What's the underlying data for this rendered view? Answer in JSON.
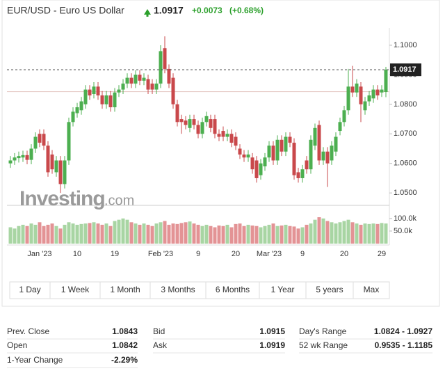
{
  "header": {
    "symbol": "EUR/USD - Euro US Dollar",
    "price": "1.0917",
    "change": "+0.0073",
    "change_pct": "(+0.68%)"
  },
  "watermark": {
    "brand": "Investing",
    "suffix": ".com"
  },
  "ranges": [
    "1 Day",
    "1 Week",
    "1 Month",
    "3 Months",
    "6 Months",
    "1 Year",
    "5 years",
    "Max"
  ],
  "stats": {
    "rows": [
      [
        [
          "Prev. Close",
          "1.0843"
        ],
        [
          "Bid",
          "1.0915"
        ],
        [
          "Day's Range",
          "1.0824 - 1.0927"
        ]
      ],
      [
        [
          "Open",
          "1.0842"
        ],
        [
          "Ask",
          "1.0919"
        ],
        [
          "52 wk Range",
          "0.9535 - 1.1185"
        ]
      ],
      [
        [
          "1-Year Change",
          "-2.29%"
        ]
      ]
    ]
  },
  "chart_data": {
    "type": "candlestick",
    "categories": [
      null,
      null,
      null,
      null,
      null,
      null,
      null,
      "Jan '23",
      null,
      null,
      null,
      null,
      null,
      null,
      null,
      null,
      "10",
      null,
      null,
      null,
      null,
      null,
      null,
      null,
      null,
      "19",
      null,
      null,
      null,
      null,
      null,
      null,
      null,
      null,
      null,
      null,
      "Feb '23",
      null,
      null,
      null,
      null,
      null,
      null,
      null,
      null,
      "9",
      null,
      null,
      null,
      null,
      null,
      null,
      null,
      null,
      "20",
      null,
      null,
      null,
      null,
      null,
      null,
      null,
      "Mar '23",
      null,
      null,
      null,
      null,
      null,
      null,
      null,
      "9",
      null,
      null,
      null,
      null,
      null,
      null,
      null,
      null,
      null,
      "20",
      null,
      null,
      null,
      null,
      null,
      null,
      null,
      null,
      "29",
      null
    ],
    "open": [
      1.06,
      1.061,
      1.0618,
      1.062,
      1.0628,
      1.0612,
      1.065,
      1.07,
      1.07,
      1.066,
      1.063,
      1.057,
      1.061,
      1.053,
      1.061,
      1.074,
      1.077,
      1.078,
      1.08,
      1.085,
      1.0835,
      1.086,
      1.083,
      1.08,
      1.083,
      1.079,
      1.084,
      1.085,
      1.087,
      1.089,
      1.087,
      1.09,
      1.088,
      1.0885,
      1.087,
      1.085,
      1.087,
      1.099,
      1.092,
      1.089,
      1.08,
      1.075,
      1.0745,
      1.072,
      1.075,
      1.073,
      1.07,
      1.074,
      1.075,
      1.075,
      1.07,
      1.071,
      1.069,
      1.07,
      1.069,
      1.065,
      1.063,
      1.062,
      1.062,
      1.061,
      1.056,
      1.059,
      1.062,
      1.066,
      1.061,
      1.068,
      1.064,
      1.069,
      1.067,
      1.057,
      1.055,
      1.061,
      1.058,
      1.066,
      1.073,
      1.061,
      1.064,
      1.061,
      1.064,
      1.071,
      1.074,
      1.078,
      1.086,
      1.084,
      1.086,
      1.078,
      1.081,
      1.082,
      1.085,
      1.084,
      1.0842
    ],
    "high": [
      1.0625,
      1.0635,
      1.064,
      1.0643,
      1.0643,
      1.0665,
      1.0705,
      1.0715,
      1.0715,
      1.0675,
      1.0645,
      1.0625,
      1.0625,
      1.0625,
      1.0755,
      1.079,
      1.0805,
      1.0825,
      1.0865,
      1.0865,
      1.0875,
      1.0875,
      1.0845,
      1.0845,
      1.0845,
      1.0855,
      1.0865,
      1.0885,
      1.0905,
      1.0905,
      1.0915,
      1.0915,
      1.0905,
      1.09,
      1.0885,
      1.0885,
      1.1,
      1.103,
      1.0935,
      1.0905,
      1.0815,
      1.0765,
      1.076,
      1.0765,
      1.0765,
      1.0745,
      1.0755,
      1.0775,
      1.0765,
      1.0765,
      1.0715,
      1.0725,
      1.0715,
      1.0715,
      1.0705,
      1.0665,
      1.0645,
      1.0645,
      1.0635,
      1.0625,
      1.0615,
      1.0635,
      1.0675,
      1.0675,
      1.0695,
      1.0695,
      1.0705,
      1.0705,
      1.0685,
      1.0585,
      1.0595,
      1.0625,
      1.0695,
      1.0735,
      1.0745,
      1.0655,
      1.0655,
      1.0675,
      1.0705,
      1.0755,
      1.0795,
      1.092,
      1.093,
      1.0885,
      1.0875,
      1.0825,
      1.0845,
      1.0865,
      1.0865,
      1.0865,
      1.0927
    ],
    "low": [
      1.0585,
      1.0595,
      1.0603,
      1.0605,
      1.0597,
      1.0597,
      1.0635,
      1.0655,
      1.0645,
      1.0555,
      1.0565,
      1.0555,
      1.05,
      1.0515,
      1.0595,
      1.0725,
      1.0755,
      1.0765,
      1.0785,
      1.0815,
      1.082,
      1.0815,
      1.0785,
      1.0785,
      1.0775,
      1.0775,
      1.0825,
      1.0835,
      1.0855,
      1.0855,
      1.0855,
      1.0865,
      1.0865,
      1.0835,
      1.0835,
      1.0835,
      1.0855,
      1.0905,
      1.0855,
      1.0785,
      1.0725,
      1.07,
      1.0715,
      1.0705,
      1.0715,
      1.0685,
      1.0685,
      1.0725,
      1.0705,
      1.0685,
      1.0675,
      1.0675,
      1.0675,
      1.0655,
      1.0645,
      1.0615,
      1.0605,
      1.0605,
      1.0565,
      1.0535,
      1.0545,
      1.0575,
      1.0605,
      1.0595,
      1.0595,
      1.0625,
      1.0625,
      1.0655,
      1.0545,
      1.0535,
      1.0535,
      1.0565,
      1.0565,
      1.0645,
      1.0595,
      1.0595,
      1.052,
      1.0595,
      1.0625,
      1.0695,
      1.0725,
      1.0765,
      1.0825,
      1.0825,
      1.074,
      1.0765,
      1.0795,
      1.0805,
      1.0815,
      1.0825,
      1.0824
    ],
    "close": [
      1.061,
      1.062,
      1.0625,
      1.0628,
      1.0612,
      1.065,
      1.069,
      1.067,
      1.066,
      1.057,
      1.058,
      1.061,
      1.053,
      1.061,
      1.074,
      1.0775,
      1.079,
      1.081,
      1.085,
      1.083,
      1.086,
      1.083,
      1.08,
      1.083,
      1.079,
      1.084,
      1.085,
      1.087,
      1.089,
      1.087,
      1.09,
      1.088,
      1.089,
      1.085,
      1.085,
      1.087,
      1.098,
      1.092,
      1.087,
      1.08,
      1.074,
      1.074,
      1.073,
      1.075,
      1.073,
      1.07,
      1.074,
      1.076,
      1.072,
      1.07,
      1.069,
      1.069,
      1.07,
      1.067,
      1.066,
      1.063,
      1.062,
      1.063,
      1.058,
      1.055,
      1.06,
      1.062,
      1.066,
      1.061,
      1.068,
      1.064,
      1.069,
      1.067,
      1.056,
      1.055,
      1.058,
      1.058,
      1.068,
      1.072,
      1.061,
      1.064,
      1.06,
      1.066,
      1.069,
      1.074,
      1.078,
      1.086,
      1.084,
      1.087,
      1.08,
      1.081,
      1.083,
      1.085,
      1.083,
      1.085,
      1.0917
    ],
    "volume": [
      65000,
      60000,
      70000,
      75000,
      70000,
      80000,
      75000,
      85000,
      70000,
      75000,
      80000,
      70000,
      60000,
      75000,
      85000,
      80000,
      75000,
      78000,
      80000,
      82000,
      85000,
      80000,
      75000,
      80000,
      70000,
      90000,
      95000,
      100000,
      95000,
      85000,
      80000,
      75000,
      80000,
      75000,
      70000,
      80000,
      85000,
      90000,
      75000,
      80000,
      78000,
      82000,
      85000,
      88000,
      80000,
      75000,
      70000,
      75000,
      70000,
      65000,
      72000,
      70000,
      75000,
      65000,
      78000,
      80000,
      70000,
      75000,
      72000,
      70000,
      65000,
      70000,
      75000,
      80000,
      70000,
      72000,
      75000,
      70000,
      68000,
      60000,
      65000,
      75000,
      80000,
      95000,
      105000,
      100000,
      90000,
      85000,
      80000,
      85000,
      90000,
      95000,
      85000,
      80000,
      75000,
      80000,
      78000,
      80000,
      78000,
      82000,
      80000
    ],
    "up_color": "#4caf50",
    "down_color": "#c9484b",
    "volume_up_color": "#a8d5a3",
    "volume_down_color": "#e39395",
    "ylim": [
      1.0458,
      1.104
    ],
    "yticks": [
      {
        "value": 1.05,
        "label": "1.0500"
      },
      {
        "value": 1.06,
        "label": "1.0600"
      },
      {
        "value": 1.07,
        "label": "1.0700"
      },
      {
        "value": 1.08,
        "label": "1.0800"
      },
      {
        "value": 1.09,
        "label": "1.0900"
      },
      {
        "value": 1.1,
        "label": "1.1000"
      }
    ],
    "volume_lim": [
      0,
      155000
    ],
    "volume_ticks": [
      {
        "value": 50000,
        "label": "50.0k"
      },
      {
        "value": 100000,
        "label": "100.0k"
      }
    ],
    "last_price": 1.0917,
    "prev_close_line": 1.0843
  }
}
